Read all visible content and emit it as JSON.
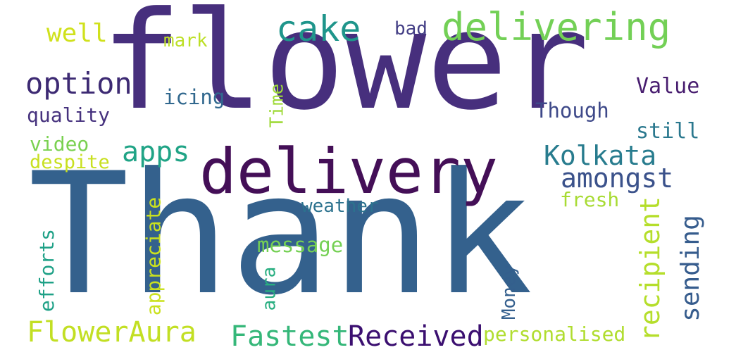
{
  "words": [
    {
      "text": "flower",
      "color": "#472f7d"
    },
    {
      "text": "Thank",
      "color": "#34618d"
    },
    {
      "text": "delivery",
      "color": "#440f57"
    },
    {
      "text": "delivering",
      "color": "#73d056"
    },
    {
      "text": "cake",
      "color": "#1f958b"
    },
    {
      "text": "well",
      "color": "#d0e11c"
    },
    {
      "text": "mark",
      "color": "#bddf26"
    },
    {
      "text": "bad",
      "color": "#433e85"
    },
    {
      "text": "option",
      "color": "#3d2a73"
    },
    {
      "text": "quality",
      "color": "#46327e"
    },
    {
      "text": "icing",
      "color": "#31688e"
    },
    {
      "text": "Time",
      "color": "#9fda3a"
    },
    {
      "text": "Value",
      "color": "#481d6f"
    },
    {
      "text": "Though",
      "color": "#3e4989"
    },
    {
      "text": "still",
      "color": "#2a788e"
    },
    {
      "text": "video",
      "color": "#7ad151"
    },
    {
      "text": "despite",
      "color": "#c8e020"
    },
    {
      "text": "apps",
      "color": "#20a486"
    },
    {
      "text": "Kolkata",
      "color": "#287c8e"
    },
    {
      "text": "amongst",
      "color": "#3b528b"
    },
    {
      "text": "weather",
      "color": "#2c728e"
    },
    {
      "text": "fresh",
      "color": "#a8db34"
    },
    {
      "text": "message",
      "color": "#75d054"
    },
    {
      "text": "recipient",
      "color": "#b5de2b"
    },
    {
      "text": "sending",
      "color": "#365c8d"
    },
    {
      "text": "efforts",
      "color": "#1fa187"
    },
    {
      "text": "appreciate",
      "color": "#cae11f"
    },
    {
      "text": "aura",
      "color": "#28ae80"
    },
    {
      "text": "Money",
      "color": "#345f8d"
    },
    {
      "text": "FlowerAura",
      "color": "#c2df23"
    },
    {
      "text": "Fastest",
      "color": "#35b779"
    },
    {
      "text": "Received",
      "color": "#3b0f70"
    },
    {
      "text": "personalised",
      "color": "#b0dd2f"
    }
  ]
}
